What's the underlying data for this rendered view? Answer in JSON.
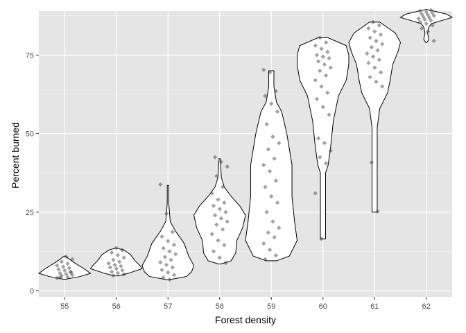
{
  "chart_data": {
    "type": "violin",
    "title": "",
    "xlabel": "Forest density",
    "ylabel": "Percent burned",
    "categories": [
      "55",
      "56",
      "57",
      "58",
      "59",
      "60",
      "61",
      "62"
    ],
    "ylim": [
      -2,
      89
    ],
    "yticks": [
      0,
      25,
      50,
      75
    ],
    "grid": true,
    "legend": "none",
    "colors": {
      "panel": "#e5e5e5",
      "grid": "#ffffff",
      "violin_fill": "#ffffff",
      "violin_outline": "#000000",
      "point": "#333333"
    },
    "violins": [
      {
        "category": "55",
        "profile": [
          [
            3.6,
            0.02
          ],
          [
            4.5,
            0.6
          ],
          [
            5.5,
            1.0
          ],
          [
            7.0,
            0.75
          ],
          [
            8.5,
            0.45
          ],
          [
            10.0,
            0.18
          ],
          [
            11.0,
            0.02
          ]
        ]
      },
      {
        "category": "56",
        "profile": [
          [
            4.7,
            0.05
          ],
          [
            5.5,
            0.25
          ],
          [
            7.0,
            0.55
          ],
          [
            8.0,
            0.5
          ],
          [
            9.5,
            0.4
          ],
          [
            11.5,
            0.3
          ],
          [
            13.0,
            0.15
          ],
          [
            13.5,
            0.02
          ]
        ]
      },
      {
        "category": "57",
        "profile": [
          [
            3.5,
            0.02
          ],
          [
            4.5,
            0.25
          ],
          [
            6.0,
            0.32
          ],
          [
            8.0,
            0.35
          ],
          [
            11.0,
            0.28
          ],
          [
            15.0,
            0.22
          ],
          [
            19.0,
            0.1
          ],
          [
            22.0,
            0.03
          ],
          [
            28.0,
            0.01
          ],
          [
            33.5,
            0.01
          ]
        ]
      },
      {
        "category": "58",
        "profile": [
          [
            8.5,
            0.02
          ],
          [
            9.5,
            0.2
          ],
          [
            12.0,
            0.28
          ],
          [
            16.0,
            0.3
          ],
          [
            20.0,
            0.4
          ],
          [
            24.0,
            0.45
          ],
          [
            27.0,
            0.35
          ],
          [
            30.0,
            0.2
          ],
          [
            33.0,
            0.08
          ],
          [
            36.0,
            0.03
          ],
          [
            42.0,
            0.01
          ]
        ]
      },
      {
        "category": "59",
        "profile": [
          [
            9.5,
            0.02
          ],
          [
            11.0,
            0.07
          ],
          [
            16.0,
            0.1
          ],
          [
            22.0,
            0.09
          ],
          [
            30.0,
            0.08
          ],
          [
            40.0,
            0.08
          ],
          [
            50.0,
            0.06
          ],
          [
            57.0,
            0.04
          ],
          [
            60.0,
            0.02
          ],
          [
            65.0,
            0.01
          ],
          [
            70.0,
            0.01
          ]
        ]
      },
      {
        "category": "60",
        "profile": [
          [
            16.5,
            0.01
          ],
          [
            25.0,
            0.01
          ],
          [
            37.5,
            0.01
          ],
          [
            40.0,
            0.02
          ],
          [
            46.0,
            0.03
          ],
          [
            54.0,
            0.04
          ],
          [
            62.0,
            0.06
          ],
          [
            67.0,
            0.09
          ],
          [
            72.0,
            0.1
          ],
          [
            75.0,
            0.1
          ],
          [
            78.0,
            0.09
          ],
          [
            80.5,
            0.02
          ]
        ]
      },
      {
        "category": "61",
        "profile": [
          [
            25.0,
            0.01
          ],
          [
            27.5,
            0.01
          ],
          [
            38.0,
            0.01
          ],
          [
            44.0,
            0.01
          ],
          [
            52.0,
            0.01
          ],
          [
            58.0,
            0.02
          ],
          [
            63.0,
            0.05
          ],
          [
            67.0,
            0.06
          ],
          [
            72.0,
            0.07
          ],
          [
            76.0,
            0.09
          ],
          [
            79.0,
            0.1
          ],
          [
            82.0,
            0.08
          ],
          [
            85.5,
            0.02
          ]
        ]
      },
      {
        "category": "62",
        "profile": [
          [
            79.0,
            0.02
          ],
          [
            80.0,
            0.1
          ],
          [
            82.0,
            0.05
          ],
          [
            84.0,
            0.1
          ],
          [
            85.0,
            0.2
          ],
          [
            86.0,
            0.6
          ],
          [
            87.0,
            1.0
          ],
          [
            88.0,
            0.8
          ],
          [
            89.0,
            0.3
          ],
          [
            89.5,
            0.02
          ]
        ]
      }
    ],
    "points": [
      {
        "category": "55",
        "values": [
          4.0,
          4.3,
          4.7,
          5.0,
          5.3,
          5.6,
          6.0,
          6.4,
          6.8,
          7.2,
          7.6,
          8.0,
          8.6,
          9.2,
          10.0,
          10.8,
          4.2,
          5.8
        ]
      },
      {
        "category": "56",
        "values": [
          4.8,
          5.2,
          5.6,
          6.0,
          6.5,
          7.0,
          7.4,
          7.8,
          8.2,
          8.7,
          9.2,
          9.8,
          10.5,
          11.3,
          12.1,
          12.9,
          13.6
        ]
      },
      {
        "category": "57",
        "values": [
          3.5,
          4.2,
          5.0,
          5.8,
          6.6,
          7.4,
          8.2,
          9.0,
          9.8,
          10.7,
          11.6,
          12.5,
          13.5,
          14.6,
          15.8,
          17.2,
          18.7,
          24.5,
          33.8
        ]
      },
      {
        "category": "58",
        "values": [
          8.8,
          10.5,
          12.5,
          14.5,
          16.0,
          18.0,
          19.5,
          21.0,
          22.0,
          23.0,
          24.0,
          25.0,
          26.0,
          27.0,
          28.0,
          29.0,
          31.0,
          33.0,
          36.5,
          39.5,
          41.0,
          42.5
        ]
      },
      {
        "category": "59",
        "values": [
          10.0,
          11.2,
          13.0,
          15.0,
          17.0,
          18.5,
          20.0,
          22.0,
          25.0,
          28.0,
          30.0,
          33.0,
          35.0,
          38.0,
          40.0,
          42.0,
          45.0,
          47.0,
          49.0,
          53.0,
          57.0,
          59.5,
          62.0,
          63.5,
          69.5,
          70.3
        ]
      },
      {
        "category": "60",
        "values": [
          16.5,
          31.0,
          40.5,
          42.5,
          44.5,
          47.0,
          48.5,
          56.0,
          58.5,
          61.0,
          63.0,
          65.0,
          67.0,
          68.5,
          70.0,
          71.0,
          72.0,
          73.0,
          74.0,
          74.5,
          75.0,
          76.0,
          77.0,
          78.0,
          79.0,
          80.5
        ]
      },
      {
        "category": "61",
        "values": [
          25.2,
          40.8,
          65.0,
          66.5,
          68.0,
          69.5,
          71.0,
          72.5,
          73.5,
          74.5,
          75.5,
          76.5,
          77.5,
          78.5,
          79.5,
          80.5,
          81.5,
          82.5,
          83.5,
          84.5,
          85.5
        ]
      },
      {
        "category": "62",
        "values": [
          79.5,
          82.5,
          83.5,
          84.5,
          85.0,
          85.5,
          86.0,
          86.3,
          86.6,
          86.9,
          87.2,
          87.5,
          87.8,
          88.1,
          88.4,
          88.7,
          89.0,
          89.3
        ]
      }
    ]
  }
}
